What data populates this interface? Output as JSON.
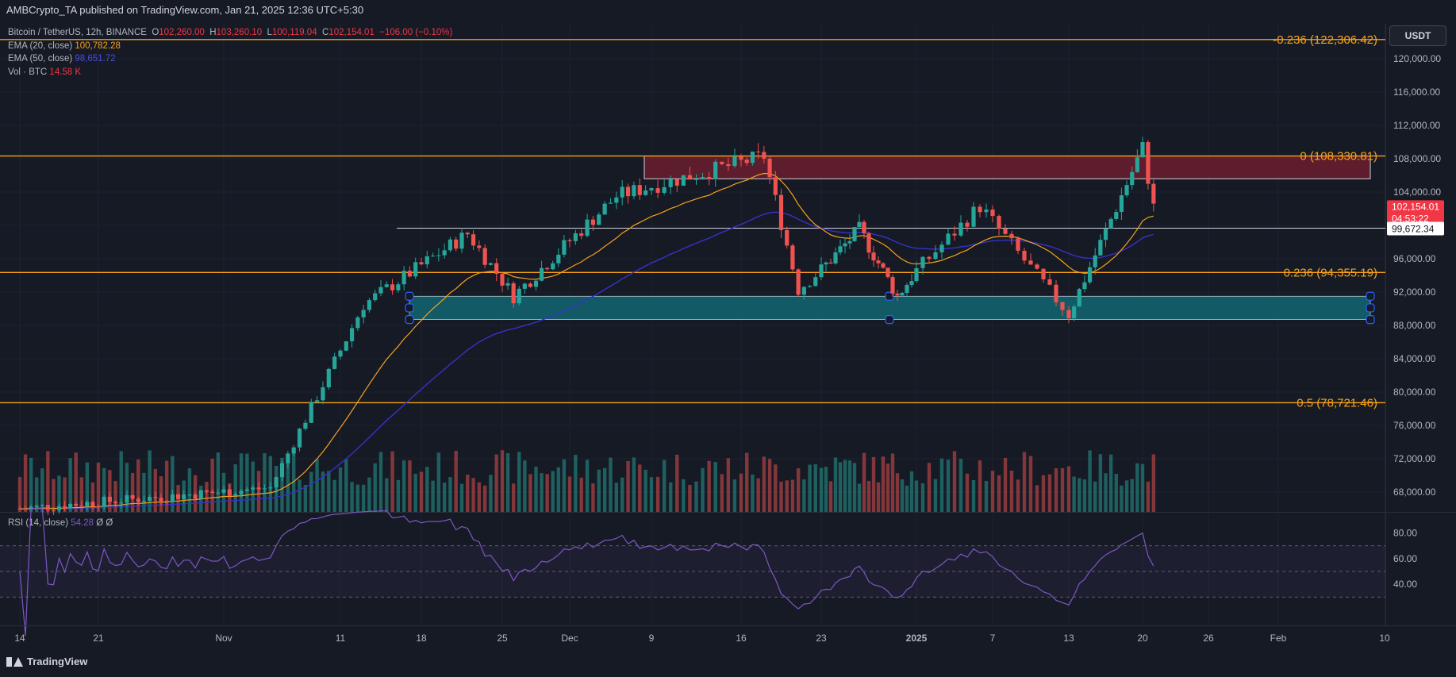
{
  "header": {
    "text": "AMBCrypto_TA published on TradingView.com, Jan 21, 2025 12:36 UTC+5:30"
  },
  "legend": {
    "symbol": "Bitcoin / TetherUS, 12h, BINANCE",
    "o_label": "O",
    "o": "102,260.00",
    "h_label": "H",
    "h": "103,260.10",
    "l_label": "L",
    "l": "100,119.04",
    "c_label": "C",
    "c": "102,154.01",
    "change": "−106.00 (−0.10%)",
    "ema20_label": "EMA (20, close)",
    "ema20": "100,782.28",
    "ema50_label": "EMA (50, close)",
    "ema50": "98,651.72",
    "vol_label": "Vol · BTC",
    "vol": "14.58 K",
    "rsi_label": "RSI (14, close)",
    "rsi": "54.28",
    "rsi_extra": "Ø Ø"
  },
  "currency_button": "USDT",
  "footer": {
    "brand": "TradingView"
  },
  "colors": {
    "background": "#161a25",
    "up": "#26a69a",
    "down": "#ef5350",
    "fib": "#f7a21b",
    "ema20": "#f7a21b",
    "ema50": "#3532c9",
    "rsi": "#7e57c2",
    "demand_zone": "#116a77",
    "supply_zone": "#6b1e2e"
  },
  "chart_data": {
    "type": "candlestick",
    "symbol": "Bitcoin / TetherUS",
    "interval": "12h",
    "exchange": "BINANCE",
    "y_scale": {
      "min": 64000,
      "max": 124000
    },
    "y_ticks": [
      "120,000.00",
      "116,000.00",
      "112,000.00",
      "108,000.00",
      "104,000.00",
      "100,000.00",
      "96,000.00",
      "92,000.00",
      "88,000.00",
      "84,000.00",
      "80,000.00",
      "76,000.00",
      "72,000.00",
      "68,000.00"
    ],
    "x_ticks": [
      "14",
      "21",
      "Nov",
      "11",
      "18",
      "25",
      "Dec",
      "9",
      "16",
      "23",
      "2025",
      "7",
      "13",
      "20",
      "26",
      "Feb",
      "10"
    ],
    "fib_levels": [
      {
        "label": "-0.236 (122,306.42)",
        "price": 122306.42
      },
      {
        "label": "0 (108,330.81)",
        "price": 108330.81
      },
      {
        "label": "0.236 (94,355.19)",
        "price": 94355.19
      },
      {
        "label": "0.5 (78,721.46)",
        "price": 78721.46
      }
    ],
    "support_line": 99672.34,
    "support_label": "99,672.34",
    "last_price_label": "102,154.01",
    "countdown": "04:53:22",
    "supply_zone": {
      "from": 105600,
      "to": 108330.81
    },
    "demand_zone": {
      "from": 88700,
      "to": 91500
    },
    "key_points": [
      {
        "date": "Oct 14",
        "price": 66000
      },
      {
        "date": "Nov 5",
        "price": 68500
      },
      {
        "date": "Nov 13",
        "price": 90500
      },
      {
        "date": "Nov 22",
        "price": 99000
      },
      {
        "date": "Nov 26",
        "price": 91500
      },
      {
        "date": "Dec 5",
        "price": 103500
      },
      {
        "date": "Dec 17",
        "price": 108330
      },
      {
        "date": "Dec 20",
        "price": 92300
      },
      {
        "date": "Dec 26",
        "price": 99500
      },
      {
        "date": "Dec 30",
        "price": 91500
      },
      {
        "date": "Jan 6",
        "price": 102300
      },
      {
        "date": "Jan 13",
        "price": 89300
      },
      {
        "date": "Jan 20",
        "price": 109300
      },
      {
        "date": "Jan 21",
        "price": 102154
      }
    ],
    "rsi": {
      "levels": [
        "80.00",
        "60.00",
        "40.00"
      ],
      "upper_band": 70,
      "lower_band": 30,
      "last": 54.28
    }
  }
}
